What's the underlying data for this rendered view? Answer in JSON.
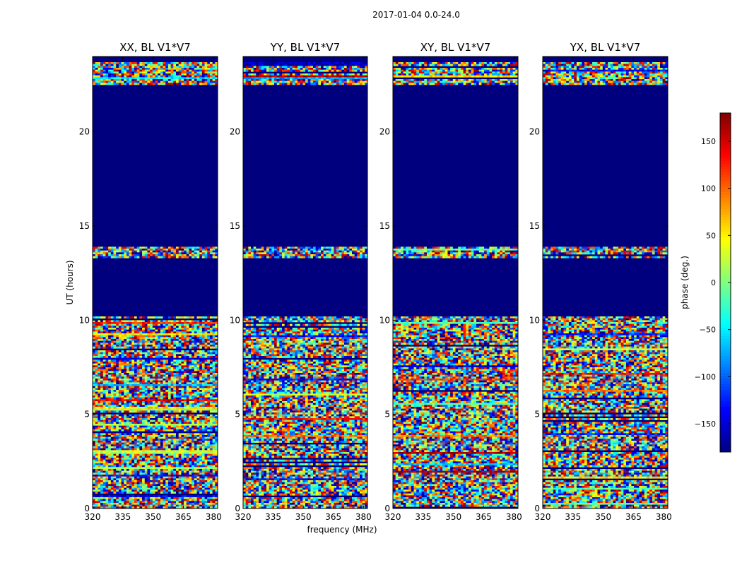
{
  "suptitle": "2017-01-04 0.0-24.0",
  "chart_data": {
    "type": "heatmap",
    "title": "2017-01-04 0.0-24.0",
    "xlabel": "frequency (MHz)",
    "ylabel": "UT (hours)",
    "xlim": [
      320,
      382
    ],
    "ylim": [
      0,
      24
    ],
    "xticks": [
      320,
      335,
      350,
      365,
      380
    ],
    "yticks": [
      0,
      5,
      10,
      15,
      20
    ],
    "colorbar": {
      "label": "phase (deg.)",
      "range": [
        -180,
        180
      ],
      "ticks": [
        150,
        100,
        50,
        0,
        -50,
        -100,
        -150
      ],
      "tick_labels": [
        "150",
        "100",
        "50",
        "0",
        "−50",
        "−100",
        "−150"
      ],
      "colormap": "jet"
    },
    "panels": [
      {
        "title": "XX, BL V1*V7"
      },
      {
        "title": "YY, BL V1*V7"
      },
      {
        "title": "XY, BL V1*V7"
      },
      {
        "title": "YX, BL V1*V7"
      }
    ],
    "flagged_ut_ranges": [
      [
        10.2,
        13.3
      ],
      [
        13.9,
        22.5
      ],
      [
        23.7,
        24.0
      ]
    ]
  }
}
